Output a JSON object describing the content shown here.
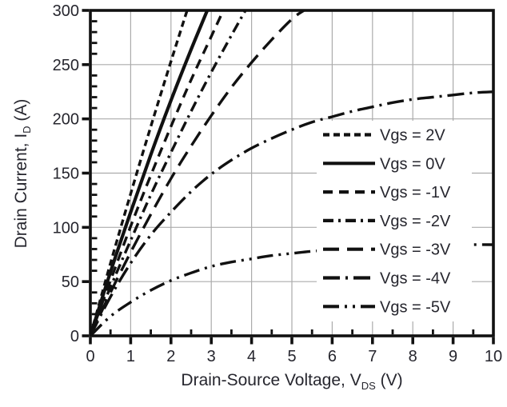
{
  "chart_data": {
    "type": "line",
    "title": "",
    "xlabel": {
      "main": "Drain-Source Voltage, V",
      "sub": "DS",
      "unit": " (V)"
    },
    "ylabel": {
      "main": "Drain Current, I",
      "sub": "D",
      "unit": " (A)"
    },
    "xlim": [
      0,
      10
    ],
    "ylim": [
      0,
      300
    ],
    "x_ticks": [
      0,
      1,
      2,
      3,
      4,
      5,
      6,
      7,
      8,
      9,
      10
    ],
    "y_ticks": [
      0,
      50,
      100,
      150,
      200,
      250,
      300
    ],
    "x_minor_step": 0.5,
    "y_minor_step": 10,
    "grid": true,
    "legend_position": "inside-right",
    "colors": {
      "line": "#111111",
      "grid": "#ababab",
      "text": "#26262e",
      "legend_bg": "#ffffff",
      "background": "#ffffff"
    },
    "series": [
      {
        "name": "Vgs = 2V",
        "linestyle": "densely-dashed",
        "points": [
          [
            0,
            0
          ],
          [
            0.5,
            67
          ],
          [
            1,
            131
          ],
          [
            1.5,
            193
          ],
          [
            2,
            253
          ],
          [
            2.4,
            300
          ]
        ]
      },
      {
        "name": "Vgs = 0V",
        "linestyle": "solid",
        "points": [
          [
            0,
            0
          ],
          [
            0.5,
            59
          ],
          [
            1,
            114
          ],
          [
            1.5,
            167
          ],
          [
            2,
            217
          ],
          [
            2.5,
            264
          ],
          [
            2.9,
            300
          ]
        ]
      },
      {
        "name": "Vgs = -1V",
        "linestyle": "dashed",
        "points": [
          [
            0,
            0
          ],
          [
            0.5,
            51
          ],
          [
            1,
            101
          ],
          [
            1.5,
            148
          ],
          [
            2,
            193
          ],
          [
            2.5,
            236
          ],
          [
            3,
            276
          ],
          [
            3.3,
            300
          ]
        ]
      },
      {
        "name": "Vgs = -2V",
        "linestyle": "dash-dot",
        "points": [
          [
            0,
            0
          ],
          [
            0.5,
            45
          ],
          [
            1,
            88
          ],
          [
            1.5,
            130
          ],
          [
            2,
            169
          ],
          [
            2.5,
            207
          ],
          [
            3,
            243
          ],
          [
            3.5,
            277
          ],
          [
            3.85,
            300
          ]
        ]
      },
      {
        "name": "Vgs = -3V",
        "linestyle": "long-dash",
        "points": [
          [
            0,
            0
          ],
          [
            0.5,
            40
          ],
          [
            1,
            77
          ],
          [
            1.5,
            112
          ],
          [
            2,
            145
          ],
          [
            2.5,
            175
          ],
          [
            3,
            203
          ],
          [
            3.5,
            229
          ],
          [
            4,
            252
          ],
          [
            4.5,
            273
          ],
          [
            5,
            292
          ],
          [
            5.3,
            300
          ]
        ]
      },
      {
        "name": "Vgs = -4V",
        "linestyle": "long-dash-dot",
        "points": [
          [
            0,
            0
          ],
          [
            0.5,
            36
          ],
          [
            1,
            67
          ],
          [
            1.5,
            93
          ],
          [
            2,
            114
          ],
          [
            2.5,
            133
          ],
          [
            3,
            149
          ],
          [
            3.5,
            162
          ],
          [
            4,
            173
          ],
          [
            4.5,
            182
          ],
          [
            5,
            190
          ],
          [
            5.5,
            197
          ],
          [
            6,
            202
          ],
          [
            6.5,
            207
          ],
          [
            7,
            211
          ],
          [
            7.5,
            215
          ],
          [
            8,
            218
          ],
          [
            8.5,
            220
          ],
          [
            9,
            222
          ],
          [
            9.5,
            224
          ],
          [
            10,
            225
          ]
        ]
      },
      {
        "name": "Vgs = -5V",
        "linestyle": "long-dash-dot-dot",
        "points": [
          [
            0,
            0
          ],
          [
            0.5,
            18
          ],
          [
            1,
            31
          ],
          [
            1.5,
            42
          ],
          [
            2,
            51
          ],
          [
            2.5,
            58
          ],
          [
            3,
            64
          ],
          [
            3.5,
            68
          ],
          [
            4,
            71
          ],
          [
            4.5,
            74
          ],
          [
            5,
            76
          ],
          [
            5.5,
            78
          ],
          [
            6,
            79
          ],
          [
            6.5,
            80
          ],
          [
            7,
            81
          ],
          [
            7.5,
            82
          ],
          [
            8,
            82
          ],
          [
            8.5,
            83
          ],
          [
            9,
            83
          ],
          [
            9.5,
            84
          ],
          [
            10,
            84
          ]
        ]
      }
    ]
  }
}
